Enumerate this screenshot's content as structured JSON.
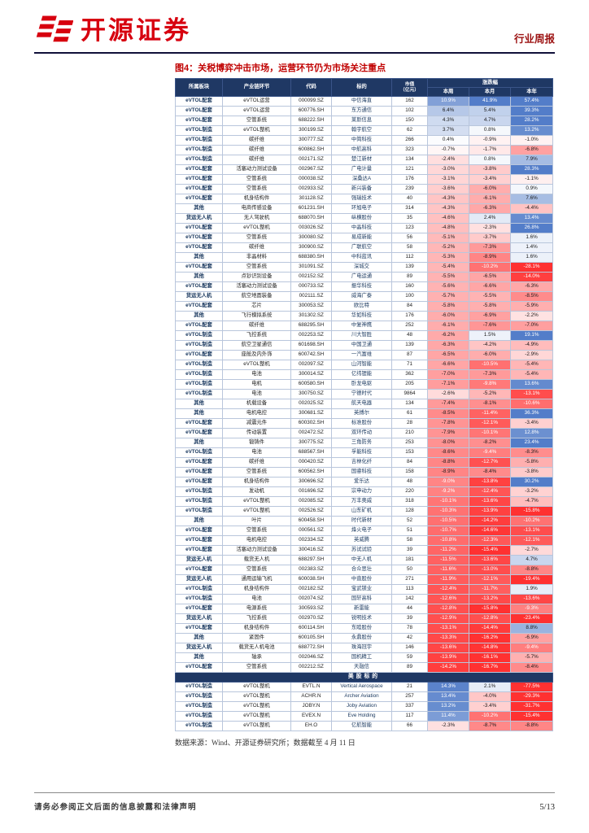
{
  "brand": {
    "name": "开源证券"
  },
  "header": {
    "report_type": "行业周报"
  },
  "figure": {
    "title": "图4：关税博弈冲击市场，运营环节仍为市场关注重点",
    "source_note": "数据来源：Wind、开源证券研究所；数据截至 4 月 11 日"
  },
  "colors": {
    "accent_red": "#c00000",
    "brand_red": "#d7000f",
    "header_navy": "#1f3864",
    "up_rgb": "68,114,196",
    "down_rgb": "255,32,32"
  },
  "table": {
    "headers": {
      "sector": "所属板块",
      "segment": "产业链环节",
      "code": "代码",
      "name": "标的",
      "mcap": "市值\n（亿元）",
      "change_group": "涨跌幅",
      "week": "本周",
      "month": "本月",
      "year": "本年"
    },
    "rows": [
      [
        "eVTOL配套",
        "eVTOL运营",
        "000099.SZ",
        "中信海直",
        162,
        10.9,
        41.9,
        57.4
      ],
      [
        "eVTOL配套",
        "eVTOL运营",
        "600776.SH",
        "东方通信",
        102,
        6.4,
        5.4,
        39.3
      ],
      [
        "eVTOL配套",
        "空管系统",
        "688222.SH",
        "莱斯信息",
        150,
        4.3,
        4.7,
        28.2
      ],
      [
        "eVTOL制造",
        "eVTOL整机",
        "300199.SZ",
        "翰宇航空",
        62,
        3.7,
        0.8,
        13.2
      ],
      [
        "eVTOL制造",
        "碳纤维",
        "300777.SZ",
        "中简科技",
        266,
        0.4,
        -0.9,
        -1.0
      ],
      [
        "eVTOL制造",
        "碳纤维",
        "600862.SH",
        "中航高科",
        323,
        -0.7,
        -1.7,
        -6.8
      ],
      [
        "eVTOL制造",
        "碳纤维",
        "002171.SZ",
        "楚江新材",
        134,
        -2.4,
        0.8,
        7.9
      ],
      [
        "eVTOL配套",
        "活塞动力测试设备",
        "002967.SZ",
        "广电计量",
        121,
        -3.0,
        -3.8,
        28.3
      ],
      [
        "eVTOL配套",
        "空管系统",
        "000038.SZ",
        "深桑达A",
        176,
        -3.1,
        -3.4,
        -1.1
      ],
      [
        "eVTOL配套",
        "空管系统",
        "002933.SZ",
        "新兴装备",
        239,
        -3.6,
        -6.0,
        0.9
      ],
      [
        "eVTOL配套",
        "机身结构件",
        "301128.SZ",
        "强瑞技术",
        40,
        -4.3,
        -6.1,
        7.6
      ],
      [
        "其他",
        "电商传感设备",
        "601231.SH",
        "环旭电子",
        314,
        -4.3,
        -6.3,
        -4.4
      ],
      [
        "货运无人机",
        "无人驾驶机",
        "688070.SH",
        "纵横股份",
        35,
        -4.6,
        2.4,
        13.4
      ],
      [
        "eVTOL配套",
        "eVTOL整机",
        "003026.SZ",
        "中晶科技",
        123,
        -4.8,
        -2.3,
        26.8
      ],
      [
        "eVTOL配套",
        "空管系统",
        "300080.SZ",
        "易成新能",
        56,
        -5.1,
        -3.7,
        1.6
      ],
      [
        "eVTOL配套",
        "碳纤维",
        "300900.SZ",
        "广联航空",
        58,
        -5.2,
        -7.3,
        1.4
      ],
      [
        "其他",
        "非晶材料",
        "688380.SH",
        "中科蓝讯",
        112,
        -5.3,
        -8.9,
        1.6
      ],
      [
        "eVTOL配套",
        "空管系统",
        "301091.SZ",
        "深城交",
        139,
        -5.4,
        -10.2,
        -28.1
      ],
      [
        "其他",
        "点钞识别设备",
        "002152.SZ",
        "广电运通",
        89,
        -5.5,
        -6.5,
        -14.0
      ],
      [
        "eVTOL配套",
        "活塞动力测试设备",
        "000733.SZ",
        "振华科技",
        160,
        -5.6,
        -6.6,
        -6.3
      ],
      [
        "货运无人机",
        "航空地面装备",
        "002111.SZ",
        "威海广泰",
        100,
        -5.7,
        -5.5,
        -8.5
      ],
      [
        "eVTOL配套",
        "芯片",
        "300053.SZ",
        "欧比特",
        84,
        -5.8,
        -5.8,
        -5.9
      ],
      [
        "其他",
        "飞行模拟系统",
        "301302.SZ",
        "华如科技",
        176,
        -6.0,
        -6.9,
        -2.2
      ],
      [
        "eVTOL配套",
        "碳纤维",
        "688295.SH",
        "中复神鹰",
        252,
        -6.1,
        -7.6,
        -7.0
      ],
      [
        "eVTOL制造",
        "飞控系统",
        "002253.SZ",
        "川大智胜",
        48,
        -6.2,
        1.5,
        19.1
      ],
      [
        "eVTOL制造",
        "航空卫星通信",
        "601698.SH",
        "中国卫通",
        139,
        -6.3,
        -4.2,
        -4.9
      ],
      [
        "eVTOL配套",
        "座舱及内外饰",
        "600742.SH",
        "一汽富维",
        87,
        -6.5,
        -6.0,
        -2.9
      ],
      [
        "eVTOL制造",
        "eVTOL整机",
        "002097.SZ",
        "山河智能",
        71,
        -6.6,
        -10.5,
        -5.4
      ],
      [
        "eVTOL制造",
        "电池",
        "300014.SZ",
        "亿纬锂能",
        362,
        -7.0,
        -7.3,
        -5.4
      ],
      [
        "eVTOL制造",
        "电机",
        "600580.SH",
        "卧龙电驱",
        205,
        -7.1,
        -9.8,
        13.6
      ],
      [
        "eVTOL制造",
        "电池",
        "300750.SZ",
        "宁德时代",
        9864,
        -2.6,
        -5.2,
        -13.1
      ],
      [
        "其他",
        "机载设备",
        "002025.SZ",
        "航天电器",
        134,
        -7.4,
        -8.1,
        -10.6
      ],
      [
        "其他",
        "电机电控",
        "300681.SZ",
        "英搏尔",
        61,
        -8.5,
        -11.4,
        36.3
      ],
      [
        "eVTOL配套",
        "减震元件",
        "600302.SH",
        "标准股份",
        28,
        -7.8,
        -12.1,
        -3.4
      ],
      [
        "eVTOL配套",
        "传动装置",
        "002472.SZ",
        "双环传动",
        210,
        -7.9,
        -10.1,
        12.8
      ],
      [
        "其他",
        "锻铸件",
        "300775.SZ",
        "三角防务",
        253,
        -8.0,
        -8.2,
        23.4
      ],
      [
        "eVTOL制造",
        "电池",
        "688567.SH",
        "孚能科技",
        153,
        -8.6,
        -9.4,
        -8.3
      ],
      [
        "eVTOL配套",
        "碳纤维",
        "000420.SZ",
        "吉林化纤",
        84,
        -8.8,
        -12.7,
        -5.8
      ],
      [
        "eVTOL配套",
        "空管系统",
        "600562.SH",
        "国睿科技",
        158,
        -8.9,
        -8.4,
        -3.8
      ],
      [
        "eVTOL配套",
        "机身结构件",
        "300696.SZ",
        "爱乐达",
        48,
        -9.0,
        -13.8,
        30.2
      ],
      [
        "eVTOL制造",
        "发动机",
        "001696.SZ",
        "宗申动力",
        220,
        -9.2,
        -12.4,
        -3.2
      ],
      [
        "eVTOL制造",
        "eVTOL整机",
        "002085.SZ",
        "万丰奥威",
        318,
        -10.1,
        -13.6,
        -4.7
      ],
      [
        "eVTOL制造",
        "eVTOL整机",
        "002526.SZ",
        "山东矿机",
        128,
        -10.3,
        -13.9,
        -15.8
      ],
      [
        "其他",
        "叶片",
        "600458.SH",
        "时代新材",
        52,
        -10.5,
        -14.2,
        -10.2
      ],
      [
        "eVTOL配套",
        "空管系统",
        "000561.SZ",
        "烽火电子",
        51,
        -10.7,
        -14.6,
        -13.1
      ],
      [
        "eVTOL配套",
        "电机电控",
        "002334.SZ",
        "英威腾",
        58,
        -10.8,
        -12.3,
        -12.1
      ],
      [
        "eVTOL配套",
        "活塞动力测试设备",
        "300416.SZ",
        "苏试试验",
        39,
        -11.2,
        -15.4,
        -2.7
      ],
      [
        "货运无人机",
        "载货无人机",
        "688297.SH",
        "中无人机",
        181,
        -11.5,
        -13.6,
        4.7
      ],
      [
        "eVTOL配套",
        "空管系统",
        "002383.SZ",
        "合众思壮",
        50,
        -11.6,
        -13.0,
        -8.8
      ],
      [
        "货运无人机",
        "通用运输飞机",
        "600038.SH",
        "中直股份",
        271,
        -11.9,
        -12.1,
        -19.4
      ],
      [
        "eVTOL制造",
        "机身结构件",
        "002182.SZ",
        "宝武镁业",
        113,
        -12.4,
        -11.7,
        1.9
      ],
      [
        "eVTOL制造",
        "电池",
        "002074.SZ",
        "国轩高科",
        142,
        -12.6,
        -13.2,
        -13.6
      ],
      [
        "eVTOL配套",
        "电源系统",
        "300593.SZ",
        "新雷能",
        44,
        -12.8,
        -15.8,
        -9.3
      ],
      [
        "货运无人机",
        "飞控系统",
        "002970.SZ",
        "锐明技术",
        39,
        -12.9,
        -12.8,
        -23.4
      ],
      [
        "eVTOL配套",
        "机身结构件",
        "600114.SH",
        "东睦股份",
        78,
        -13.1,
        -14.4,
        8.8
      ],
      [
        "其他",
        "紧固件",
        "600105.SH",
        "永鼎股份",
        42,
        -13.3,
        -16.2,
        -6.9
      ],
      [
        "货运无人机",
        "载货无人机电池",
        "688772.SH",
        "珠海冠宇",
        146,
        -13.6,
        -14.8,
        -9.4
      ],
      [
        "其他",
        "轴承",
        "002046.SZ",
        "国机精工",
        59,
        -13.9,
        -16.1,
        -5.7
      ],
      [
        "eVTOL配套",
        "空管系统",
        "002212.SZ",
        "天融信",
        89,
        -14.2,
        -16.7,
        -8.4
      ]
    ],
    "us_banner": "美股标的",
    "us_rows": [
      [
        "eVTOL制造",
        "eVTOL整机",
        "EVTL.N",
        "Vertical Aerospace",
        21,
        14.3,
        2.1,
        -77.5
      ],
      [
        "eVTOL制造",
        "eVTOL整机",
        "ACHR.N",
        "Archer Aviation",
        257,
        13.4,
        -4.0,
        -29.3
      ],
      [
        "eVTOL制造",
        "eVTOL整机",
        "JOBY.N",
        "Joby Aviation",
        337,
        13.2,
        -3.4,
        -31.7
      ],
      [
        "eVTOL制造",
        "eVTOL整机",
        "EVEX.N",
        "Eve Holding",
        117,
        11.4,
        -10.2,
        -15.4
      ],
      [
        "eVTOL制造",
        "eVTOL整机",
        "EH.O",
        "亿航智能",
        66,
        -2.3,
        -8.7,
        -8.8
      ]
    ]
  },
  "footer": {
    "disclaimer": "请务必参阅正文后面的信息披露和法律声明",
    "page": "5/13"
  }
}
